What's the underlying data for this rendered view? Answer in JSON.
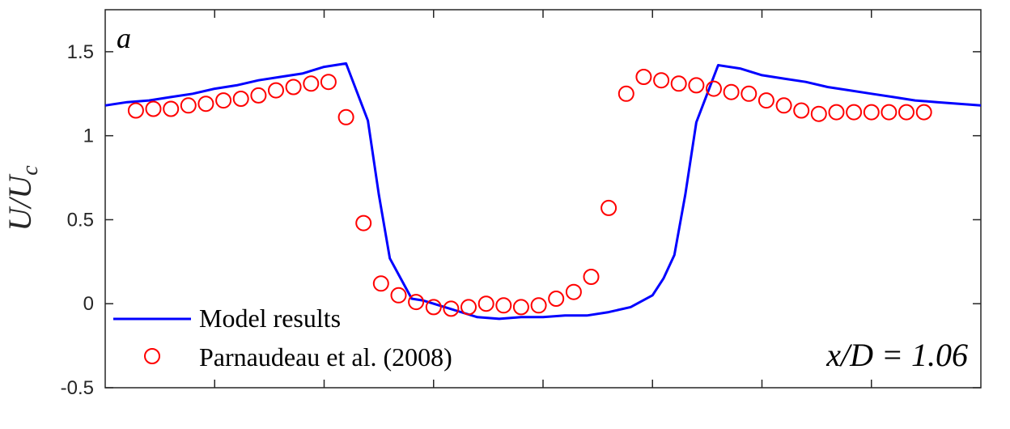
{
  "chart_data": {
    "type": "line",
    "panel_label": "a",
    "annotation": "x/D = 1.06",
    "ylabel": "U/U_c",
    "xlabel": "",
    "title": "",
    "xlim": [
      -2,
      2
    ],
    "ylim": [
      -0.5,
      1.75
    ],
    "yticks": [
      -0.5,
      0,
      0.5,
      1,
      1.5
    ],
    "ytick_labels": [
      "-0.5",
      "0",
      "0.5",
      "1",
      "1.5"
    ],
    "xticks": [
      -1.5,
      -1,
      -0.5,
      0,
      0.5,
      1,
      1.5
    ],
    "grid": false,
    "legend_position": "bottom-left",
    "series": [
      {
        "name": "Model results",
        "kind": "line",
        "color": "#0000ff",
        "x": [
          -2.0,
          -1.9,
          -1.8,
          -1.7,
          -1.6,
          -1.5,
          -1.4,
          -1.3,
          -1.2,
          -1.1,
          -1.0,
          -0.9,
          -0.8,
          -0.75,
          -0.7,
          -0.65,
          -0.6,
          -0.55,
          -0.5,
          -0.4,
          -0.3,
          -0.2,
          -0.1,
          0.0,
          0.1,
          0.2,
          0.3,
          0.4,
          0.5,
          0.55,
          0.6,
          0.65,
          0.7,
          0.75,
          0.8,
          0.9,
          1.0,
          1.1,
          1.2,
          1.3,
          1.4,
          1.5,
          1.6,
          1.7,
          1.8,
          1.9,
          2.0
        ],
        "y": [
          1.18,
          1.2,
          1.21,
          1.23,
          1.25,
          1.28,
          1.3,
          1.33,
          1.35,
          1.37,
          1.41,
          1.43,
          1.09,
          0.65,
          0.27,
          0.15,
          0.03,
          0.02,
          0.0,
          -0.04,
          -0.08,
          -0.09,
          -0.08,
          -0.08,
          -0.07,
          -0.07,
          -0.05,
          -0.02,
          0.05,
          0.15,
          0.29,
          0.65,
          1.08,
          1.25,
          1.42,
          1.4,
          1.36,
          1.34,
          1.32,
          1.29,
          1.27,
          1.25,
          1.23,
          1.21,
          1.2,
          1.19,
          1.18
        ]
      },
      {
        "name": "Parnaudeau et al. (2008)",
        "kind": "scatter",
        "color": "#ff0000",
        "x": [
          -1.86,
          -1.78,
          -1.7,
          -1.62,
          -1.54,
          -1.46,
          -1.38,
          -1.3,
          -1.22,
          -1.14,
          -1.06,
          -0.98,
          -0.9,
          -0.82,
          -0.74,
          -0.66,
          -0.58,
          -0.5,
          -0.42,
          -0.34,
          -0.26,
          -0.18,
          -0.1,
          -0.02,
          0.06,
          0.14,
          0.22,
          0.3,
          0.38,
          0.46,
          0.54,
          0.62,
          0.7,
          0.78,
          0.86,
          0.94,
          1.02,
          1.1,
          1.18,
          1.26,
          1.34,
          1.42,
          1.5,
          1.58,
          1.66,
          1.74
        ],
        "y": [
          1.15,
          1.16,
          1.16,
          1.18,
          1.19,
          1.21,
          1.22,
          1.24,
          1.27,
          1.29,
          1.31,
          1.32,
          1.11,
          0.48,
          0.12,
          0.05,
          0.01,
          -0.02,
          -0.03,
          -0.02,
          0.0,
          -0.01,
          -0.02,
          -0.01,
          0.03,
          0.07,
          0.16,
          0.57,
          1.25,
          1.35,
          1.33,
          1.31,
          1.3,
          1.28,
          1.26,
          1.25,
          1.21,
          1.18,
          1.15,
          1.13,
          1.14,
          1.14,
          1.14,
          1.14,
          1.14,
          1.14
        ]
      }
    ]
  }
}
